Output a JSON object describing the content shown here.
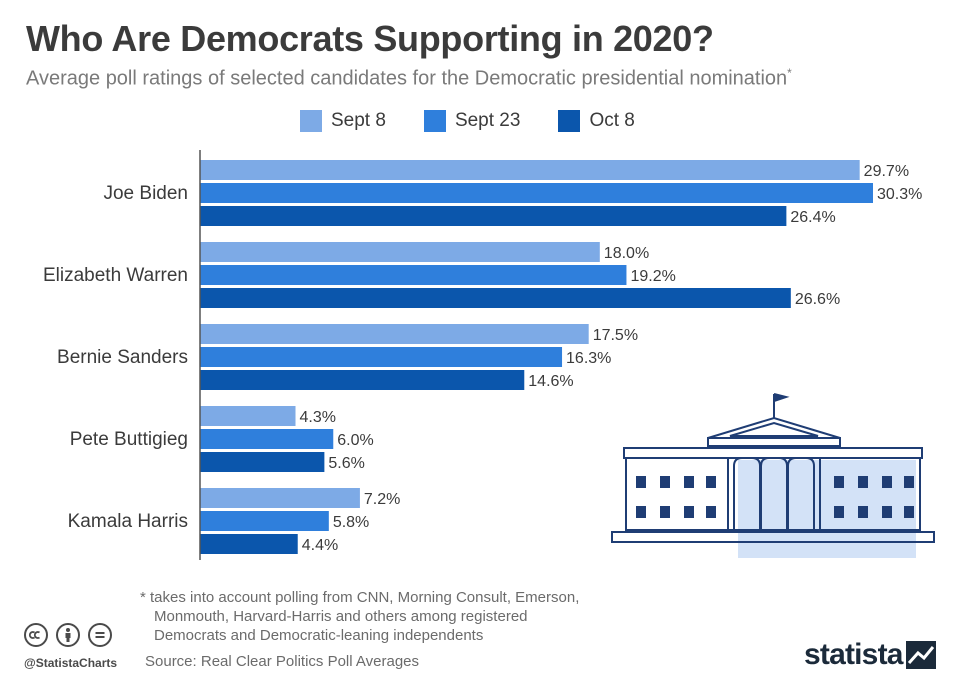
{
  "title": "Who Are Democrats Supporting in 2020?",
  "subtitle": "Average poll ratings of selected candidates for the Democratic presidential nomination",
  "subtitle_mark": "*",
  "colors": {
    "sept8": "#7daae6",
    "sept23": "#2f7fdc",
    "oct8": "#0b56ac",
    "axis": "#555555",
    "text": "#3b3b3b"
  },
  "chart_data": {
    "type": "bar",
    "orientation": "horizontal",
    "categories": [
      "Joe Biden",
      "Elizabeth Warren",
      "Bernie Sanders",
      "Pete Buttigieg",
      "Kamala Harris"
    ],
    "series": [
      {
        "name": "Sept 8",
        "values": [
          29.7,
          18.0,
          17.5,
          4.3,
          7.2
        ]
      },
      {
        "name": "Sept 23",
        "values": [
          30.3,
          19.2,
          16.3,
          6.0,
          5.8
        ]
      },
      {
        "name": "Oct 8",
        "values": [
          26.4,
          26.6,
          14.6,
          5.6,
          4.4
        ]
      }
    ],
    "value_suffix": "%",
    "xlim": [
      0,
      35
    ],
    "grid": false,
    "legend_position": "top"
  },
  "footnote": [
    "* takes into account polling from CNN, Morning Consult, Emerson,",
    "Monmouth, Harvard-Harris and others among registered",
    "Democrats and Democratic-leaning independents"
  ],
  "source": "Source: Real Clear Politics Poll Averages",
  "handle": "@StatistaCharts",
  "brand": "statista",
  "icons": [
    "creative-commons-icon",
    "attribution-icon",
    "no-derivatives-icon",
    "statista-logo-icon",
    "white-house-icon"
  ]
}
